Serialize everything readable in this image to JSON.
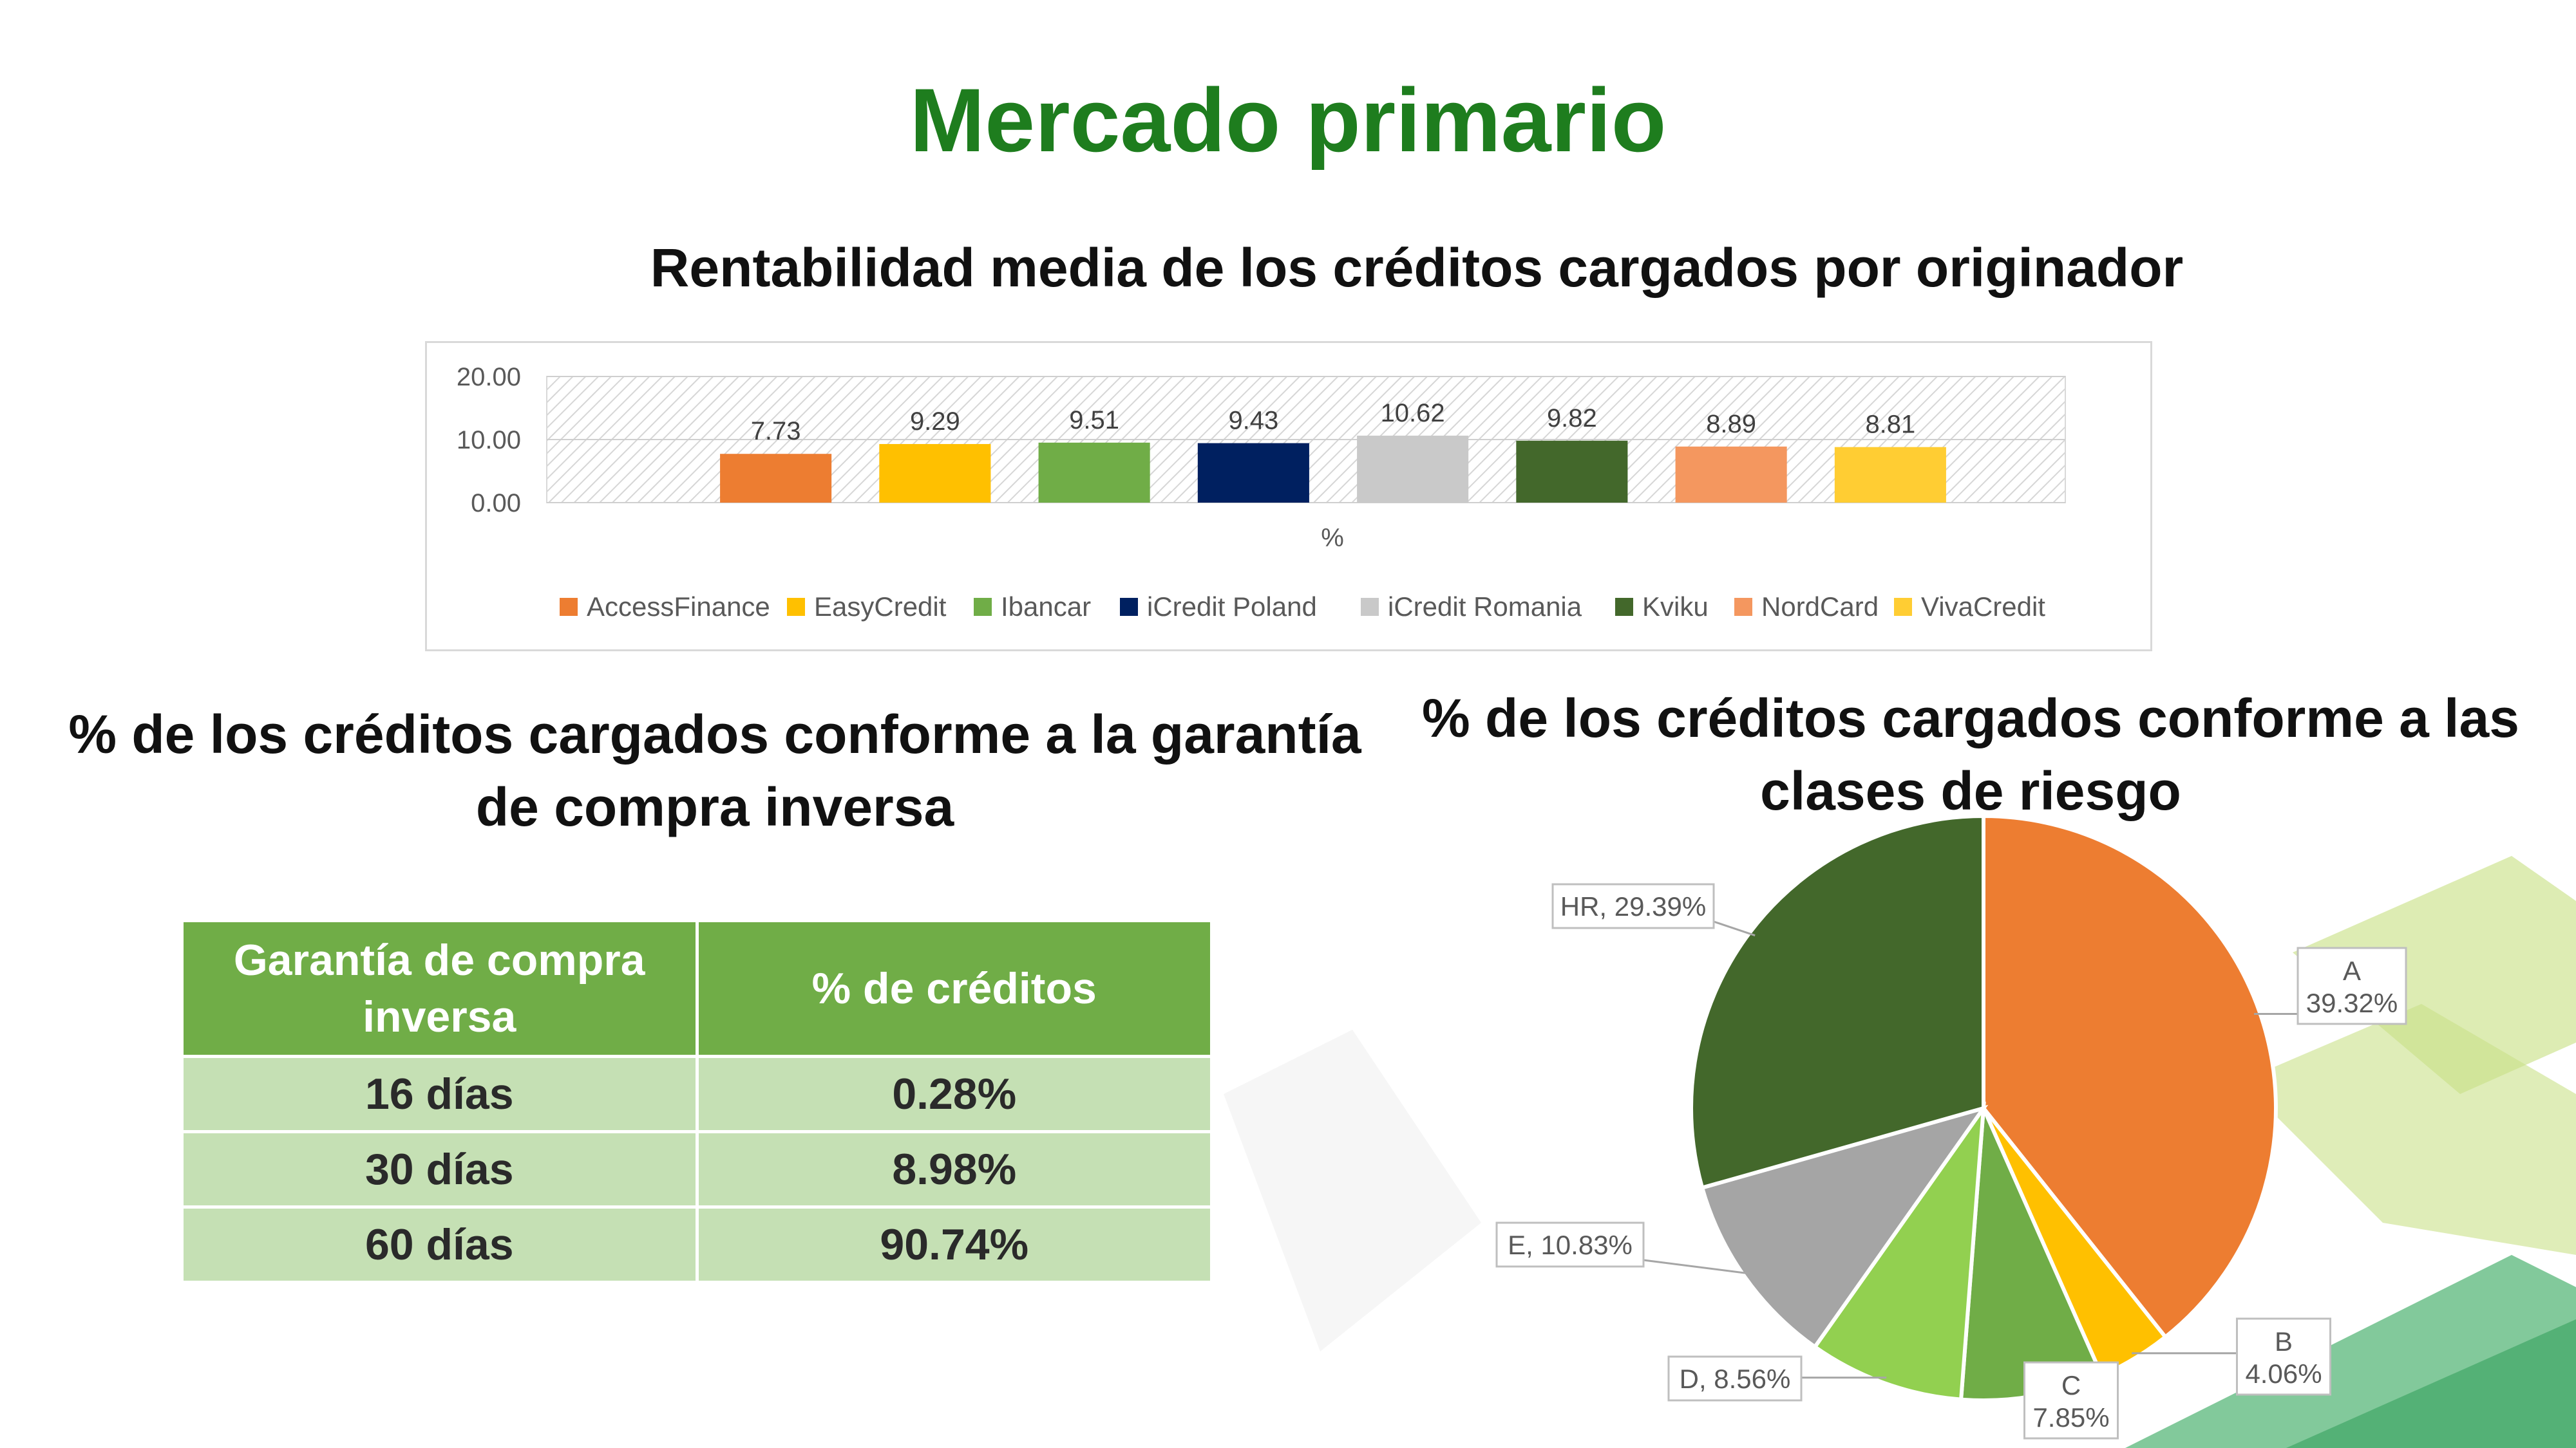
{
  "slide": {
    "title": "Mercado primario"
  },
  "bar_section": {
    "title": "Rentabilidad media de los créditos cargados por originador"
  },
  "table_section": {
    "title": "% de los créditos cargados conforme a la garantía de compra inversa",
    "headers": [
      "Garantía de compra inversa",
      "% de créditos"
    ],
    "rows": [
      {
        "period": "16 días",
        "share": "0.28%"
      },
      {
        "period": "30 días",
        "share": "8.98%"
      },
      {
        "period": "60 días",
        "share": "90.74%"
      }
    ],
    "colors": {
      "header": "#70ad47",
      "cell": "#c5e0b4"
    }
  },
  "pie_section": {
    "title": "% de los créditos cargados conforme a las clases de riesgo"
  },
  "chart_data": [
    {
      "type": "bar",
      "title": "Rentabilidad media de los créditos cargados por originador",
      "xlabel": "%",
      "ylabel": "",
      "ylim": [
        0,
        20
      ],
      "yticks": [
        "0.00",
        "10.00",
        "20.00"
      ],
      "categories": [
        "%"
      ],
      "legend_position": "bottom",
      "series": [
        {
          "name": "AccessFinance",
          "values": [
            7.73
          ],
          "color": "#ed7d31"
        },
        {
          "name": "EasyCredit",
          "values": [
            9.29
          ],
          "color": "#ffc000"
        },
        {
          "name": "Ibancar",
          "values": [
            9.51
          ],
          "color": "#70ad47"
        },
        {
          "name": "iCredit Poland",
          "values": [
            9.43
          ],
          "color": "#002060"
        },
        {
          "name": "iCredit Romania",
          "values": [
            10.62
          ],
          "color": "#c9c9c9"
        },
        {
          "name": "Kviku",
          "values": [
            9.82
          ],
          "color": "#43682b"
        },
        {
          "name": "NordCard",
          "values": [
            8.89
          ],
          "color": "#f4975f"
        },
        {
          "name": "VivaCredit",
          "values": [
            8.81
          ],
          "color": "#ffcd33"
        }
      ],
      "data_labels": [
        "7.73",
        "9.29",
        "9.51",
        "9.43",
        "10.62",
        "9.82",
        "8.89",
        "8.81"
      ]
    },
    {
      "type": "pie",
      "title": "% de los créditos cargados conforme a las clases de riesgo",
      "slices": [
        {
          "label": "A",
          "value": 39.32,
          "display": "39.32%",
          "color": "#ed7d31"
        },
        {
          "label": "B",
          "value": 4.06,
          "display": "4.06%",
          "color": "#ffc000"
        },
        {
          "label": "C",
          "value": 7.85,
          "display": "7.85%",
          "color": "#70ad47"
        },
        {
          "label": "D",
          "value": 8.56,
          "display": "8.56%",
          "color": "#92d050"
        },
        {
          "label": "E",
          "value": 10.83,
          "display": "10.83%",
          "color": "#a5a5a5"
        },
        {
          "label": "HR",
          "value": 29.39,
          "display": "29.39%",
          "color": "#43682b"
        }
      ]
    }
  ]
}
